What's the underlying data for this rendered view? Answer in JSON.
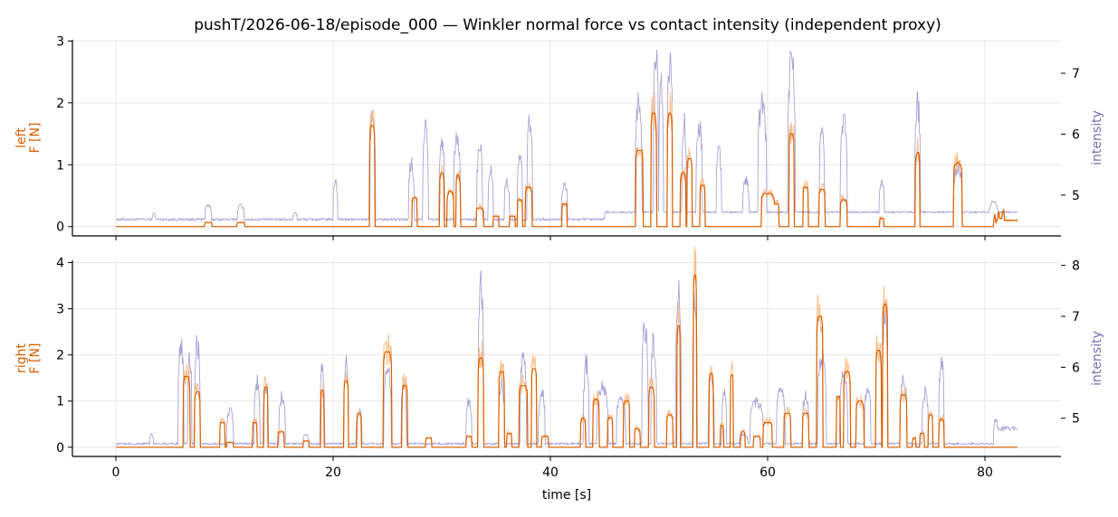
{
  "chart_data": {
    "type": "line",
    "title": "pushT/2026-06-18/episode_000 — Winkler normal force vs contact intensity (independent proxy)",
    "xlabel": "time [s]",
    "xlim": [
      -4,
      87
    ],
    "xticks": [
      0,
      20,
      40,
      60,
      80
    ],
    "grid": true,
    "colors": {
      "force": "#d95f02",
      "force_raw": "#fdbf8a",
      "intensity": "#a9a3d6",
      "intensity_label": "#7570b3"
    },
    "panels": [
      {
        "name": "left",
        "ylabel": "left\nF [N]",
        "ylabel_right": "intensity",
        "ylim": [
          -0.15,
          3.02
        ],
        "yticks": [
          0,
          1,
          2,
          3
        ],
        "ylim_right": [
          4.33,
          7.55
        ],
        "yticks_right": [
          5,
          6,
          7
        ],
        "force_peaks": [
          [
            8.5,
            0.7,
            0.07
          ],
          [
            11.5,
            0.7,
            0.06
          ],
          [
            23.6,
            0.5,
            1.63
          ],
          [
            27.5,
            0.5,
            0.47
          ],
          [
            30.0,
            0.4,
            0.86
          ],
          [
            30.8,
            0.6,
            0.56
          ],
          [
            31.5,
            0.4,
            0.82
          ],
          [
            33.5,
            0.7,
            0.3
          ],
          [
            35.0,
            0.5,
            0.18
          ],
          [
            36.5,
            0.5,
            0.18
          ],
          [
            37.2,
            0.5,
            0.44
          ],
          [
            38.0,
            0.6,
            0.65
          ],
          [
            41.3,
            0.5,
            0.38
          ],
          [
            48.2,
            0.7,
            1.25
          ],
          [
            49.5,
            0.5,
            1.84
          ],
          [
            51.0,
            0.5,
            1.82
          ],
          [
            52.2,
            0.5,
            0.88
          ],
          [
            52.8,
            0.5,
            1.1
          ],
          [
            54.0,
            0.5,
            0.67
          ],
          [
            60.0,
            1.2,
            0.54
          ],
          [
            60.8,
            0.5,
            0.38
          ],
          [
            62.2,
            0.5,
            1.51
          ],
          [
            63.5,
            0.5,
            0.65
          ],
          [
            65.0,
            0.6,
            0.6
          ],
          [
            67.0,
            0.6,
            0.44
          ],
          [
            70.5,
            0.4,
            0.15
          ],
          [
            73.8,
            0.4,
            1.19
          ],
          [
            77.5,
            0.8,
            1.02
          ],
          [
            81.5,
            0.9,
            0.12
          ]
        ],
        "force_tail": [
          80.8,
          83.0,
          0.1
        ],
        "intensity_base": 4.6,
        "intensity_peaks": [
          [
            3.5,
            0.3,
            4.7
          ],
          [
            8.5,
            0.6,
            4.85
          ],
          [
            11.5,
            0.6,
            4.85
          ],
          [
            16.5,
            0.4,
            4.72
          ],
          [
            20.2,
            0.4,
            5.3
          ],
          [
            23.6,
            0.6,
            6.4
          ],
          [
            27.2,
            0.5,
            5.6
          ],
          [
            28.5,
            0.5,
            6.2
          ],
          [
            30.0,
            0.5,
            6.0
          ],
          [
            31.4,
            0.6,
            6.05
          ],
          [
            33.5,
            0.5,
            5.9
          ],
          [
            34.5,
            0.5,
            5.5
          ],
          [
            36.0,
            0.5,
            5.25
          ],
          [
            37.2,
            0.5,
            5.7
          ],
          [
            38.1,
            0.5,
            6.4
          ],
          [
            41.3,
            0.6,
            5.2
          ],
          [
            48.1,
            0.6,
            6.7
          ],
          [
            49.7,
            0.5,
            7.55
          ],
          [
            50.2,
            0.4,
            7.0
          ],
          [
            51.0,
            0.5,
            7.4
          ],
          [
            52.3,
            0.4,
            6.3
          ],
          [
            53.7,
            0.6,
            6.3
          ],
          [
            55.5,
            0.5,
            5.8
          ],
          [
            58.0,
            0.6,
            5.3
          ],
          [
            59.5,
            0.8,
            6.7
          ],
          [
            62.2,
            0.7,
            7.4
          ],
          [
            65.0,
            0.5,
            6.2
          ],
          [
            67.0,
            0.6,
            6.4
          ],
          [
            70.5,
            0.5,
            5.3
          ],
          [
            73.8,
            0.5,
            6.65
          ],
          [
            77.5,
            0.8,
            5.5
          ],
          [
            80.8,
            0.8,
            4.9
          ]
        ]
      },
      {
        "name": "right",
        "ylabel": "right\nF [N]",
        "ylabel_right": "intensity",
        "ylim": [
          -0.2,
          4.05
        ],
        "yticks": [
          0,
          1,
          2,
          3,
          4
        ],
        "ylim_right": [
          4.25,
          8.1
        ],
        "yticks_right": [
          5,
          6,
          7,
          8
        ],
        "force_peaks": [
          [
            6.5,
            0.6,
            1.55
          ],
          [
            7.5,
            0.5,
            1.2
          ],
          [
            9.8,
            0.5,
            0.55
          ],
          [
            10.5,
            0.6,
            0.1
          ],
          [
            12.8,
            0.4,
            0.55
          ],
          [
            13.8,
            0.4,
            1.3
          ],
          [
            15.2,
            0.6,
            0.35
          ],
          [
            17.5,
            0.5,
            0.15
          ],
          [
            19.0,
            0.3,
            1.25
          ],
          [
            21.2,
            0.4,
            1.45
          ],
          [
            22.4,
            0.4,
            0.73
          ],
          [
            25.0,
            0.8,
            2.08
          ],
          [
            26.6,
            0.5,
            1.35
          ],
          [
            28.8,
            0.6,
            0.2
          ],
          [
            32.5,
            0.5,
            0.25
          ],
          [
            33.6,
            0.5,
            1.95
          ],
          [
            35.5,
            0.5,
            1.65
          ],
          [
            36.2,
            0.5,
            0.3
          ],
          [
            37.5,
            0.8,
            1.35
          ],
          [
            38.5,
            0.5,
            1.7
          ],
          [
            39.5,
            0.6,
            0.25
          ],
          [
            43.0,
            0.5,
            0.62
          ],
          [
            44.2,
            0.6,
            1.05
          ],
          [
            45.5,
            0.5,
            0.65
          ],
          [
            47.0,
            0.6,
            1.0
          ],
          [
            48.0,
            0.5,
            0.4
          ],
          [
            49.3,
            0.5,
            1.3
          ],
          [
            51.0,
            0.6,
            0.7
          ],
          [
            51.8,
            0.3,
            2.65
          ],
          [
            53.3,
            0.3,
            3.75
          ],
          [
            54.8,
            0.4,
            1.6
          ],
          [
            55.8,
            0.3,
            0.48
          ],
          [
            56.7,
            0.3,
            1.58
          ],
          [
            57.7,
            0.4,
            0.35
          ],
          [
            59.0,
            0.6,
            0.25
          ],
          [
            60.0,
            0.8,
            0.55
          ],
          [
            61.8,
            0.6,
            0.75
          ],
          [
            63.5,
            0.6,
            0.75
          ],
          [
            64.8,
            0.6,
            2.85
          ],
          [
            66.5,
            0.4,
            1.1
          ],
          [
            67.3,
            0.6,
            1.65
          ],
          [
            68.5,
            0.7,
            1.0
          ],
          [
            70.2,
            0.5,
            2.1
          ],
          [
            70.8,
            0.5,
            3.1
          ],
          [
            72.5,
            0.6,
            1.15
          ],
          [
            73.5,
            0.3,
            0.2
          ],
          [
            74.2,
            0.4,
            0.3
          ],
          [
            75.0,
            0.4,
            0.7
          ],
          [
            76.0,
            0.5,
            0.6
          ]
        ],
        "intensity_base": 4.5,
        "intensity_peaks": [
          [
            3.3,
            0.3,
            4.7
          ],
          [
            6.0,
            0.5,
            6.6
          ],
          [
            6.8,
            0.4,
            6.3
          ],
          [
            7.5,
            0.5,
            6.65
          ],
          [
            10.5,
            0.6,
            5.2
          ],
          [
            13.0,
            0.5,
            5.8
          ],
          [
            13.8,
            0.5,
            5.7
          ],
          [
            15.3,
            0.6,
            5.5
          ],
          [
            17.5,
            0.5,
            4.7
          ],
          [
            19.0,
            0.4,
            6.1
          ],
          [
            21.2,
            0.4,
            6.2
          ],
          [
            22.4,
            0.5,
            5.2
          ],
          [
            25.0,
            0.7,
            6.1
          ],
          [
            26.5,
            0.5,
            5.8
          ],
          [
            32.5,
            0.5,
            5.4
          ],
          [
            33.6,
            0.5,
            7.9
          ],
          [
            35.5,
            0.5,
            5.8
          ],
          [
            37.5,
            0.6,
            6.3
          ],
          [
            39.2,
            0.6,
            5.6
          ],
          [
            43.3,
            0.5,
            6.2
          ],
          [
            44.8,
            1.0,
            5.7
          ],
          [
            46.5,
            0.8,
            5.5
          ],
          [
            48.7,
            0.6,
            7.0
          ],
          [
            49.5,
            0.5,
            6.7
          ],
          [
            51.8,
            0.5,
            7.6
          ],
          [
            53.3,
            0.4,
            7.8
          ],
          [
            54.8,
            0.5,
            6.0
          ],
          [
            56.0,
            0.4,
            5.6
          ],
          [
            57.8,
            0.8,
            4.7
          ],
          [
            59.0,
            1.2,
            5.4
          ],
          [
            61.2,
            0.8,
            5.7
          ],
          [
            63.5,
            0.6,
            5.5
          ],
          [
            65.0,
            0.8,
            6.3
          ],
          [
            67.0,
            0.7,
            6.1
          ],
          [
            69.2,
            0.6,
            5.7
          ],
          [
            70.8,
            0.5,
            7.3
          ],
          [
            72.5,
            0.6,
            5.9
          ],
          [
            74.5,
            0.6,
            5.6
          ],
          [
            76.0,
            0.5,
            6.3
          ],
          [
            81.0,
            0.4,
            5.0
          ]
        ],
        "intensity_tail": [
          80.8,
          83.0,
          4.8
        ]
      }
    ]
  }
}
